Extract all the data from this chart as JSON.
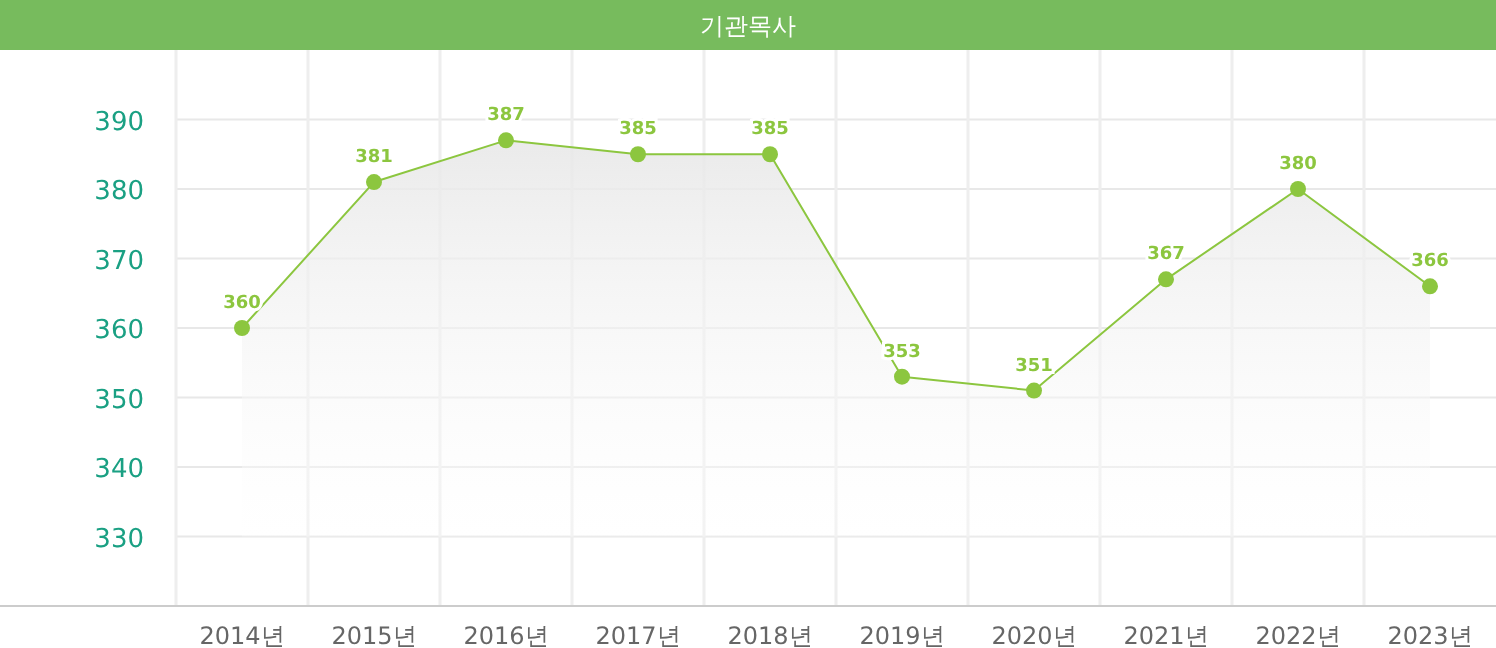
{
  "chart_data": {
    "type": "area",
    "title": "기관목사",
    "categories": [
      "2014년",
      "2015년",
      "2016년",
      "2017년",
      "2018년",
      "2019년",
      "2020년",
      "2021년",
      "2022년",
      "2023년"
    ],
    "series": [
      {
        "color": "#8cc63f",
        "values": [
          360,
          381,
          387,
          385,
          385,
          353,
          351,
          367,
          380,
          366
        ]
      }
    ],
    "ylim": [
      320,
      400
    ],
    "yticks": [
      330,
      340,
      350,
      360,
      370,
      380,
      390
    ],
    "grid": true,
    "marker": "circle",
    "data_labels": true
  }
}
